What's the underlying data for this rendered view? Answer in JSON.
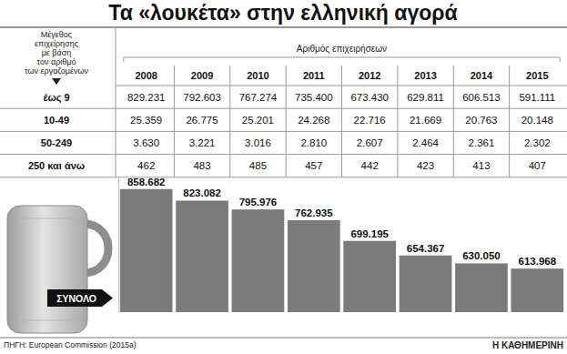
{
  "chart_data": {
    "type": "bar",
    "title": "Τα «λουκέτα» στην ελληνική αγορά",
    "annotation": "ΣΥΝΟΛΟ",
    "categories": [
      "2008",
      "2009",
      "2010",
      "2011",
      "2012",
      "2013",
      "2014",
      "2015"
    ],
    "values": [
      858682,
      823082,
      795976,
      762935,
      699195,
      654367,
      630050,
      613968
    ],
    "value_labels": [
      "858.682",
      "823.082",
      "795.976",
      "762.935",
      "699.195",
      "654.367",
      "630.050",
      "613.968"
    ],
    "color": "#7b7b7b",
    "ylim": [
      480000,
      900000
    ],
    "data_labels": true,
    "tick_labels": false,
    "grid": false
  },
  "table": {
    "header": [
      "Μέγεθος",
      "επιχείρησης",
      "με βάση",
      "τον αριθμό",
      "των εργαζομένων"
    ],
    "group_header": "Αριθμός επιχειρήσεων",
    "rows": [
      [
        "έως 9",
        "829.231",
        "792.603",
        "767.274",
        "735.400",
        "673.430",
        "629.811",
        "606.513",
        "591.111"
      ],
      [
        "10-49",
        "25.359",
        "26.775",
        "25.201",
        "24.268",
        "22.716",
        "21.669",
        "20.763",
        "20.148"
      ],
      [
        "50-249",
        "3.630",
        "3.221",
        "3.016",
        "2.810",
        "2.607",
        "2.464",
        "2.361",
        "2.302"
      ],
      [
        "250 και άνω",
        "462",
        "483",
        "485",
        "457",
        "442",
        "423",
        "413",
        "407"
      ]
    ]
  },
  "source": "ΠΗΓΗ: European Commission (2015a)",
  "credit": "Η ΚΑΘΗΜΕΡΙΝΗ"
}
